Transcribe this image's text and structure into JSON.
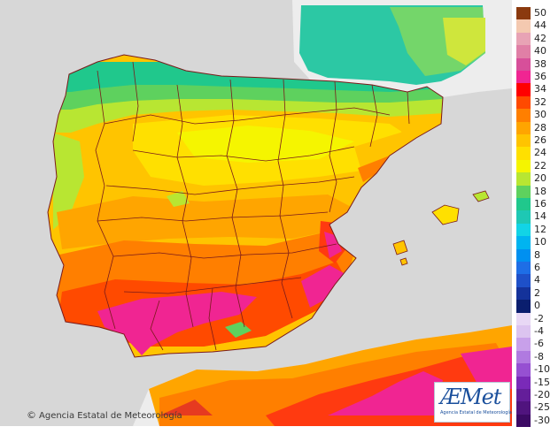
{
  "legend": {
    "entries": [
      {
        "label": "50",
        "color": "#8b3a0f"
      },
      {
        "label": "44",
        "color": "#f4c9b0"
      },
      {
        "label": "42",
        "color": "#e8a3b5"
      },
      {
        "label": "40",
        "color": "#e07fa6"
      },
      {
        "label": "38",
        "color": "#d74f9a"
      },
      {
        "label": "36",
        "color": "#f02592"
      },
      {
        "label": "34",
        "color": "#ff0000"
      },
      {
        "label": "32",
        "color": "#ff4a00"
      },
      {
        "label": "30",
        "color": "#ff7f00"
      },
      {
        "label": "28",
        "color": "#ffa500"
      },
      {
        "label": "26",
        "color": "#ffc400"
      },
      {
        "label": "24",
        "color": "#ffe000"
      },
      {
        "label": "22",
        "color": "#f5f500"
      },
      {
        "label": "20",
        "color": "#b8e632"
      },
      {
        "label": "18",
        "color": "#5ed15e"
      },
      {
        "label": "16",
        "color": "#20c88c"
      },
      {
        "label": "14",
        "color": "#1ec8b4"
      },
      {
        "label": "12",
        "color": "#12d4e6"
      },
      {
        "label": "10",
        "color": "#00b4f0"
      },
      {
        "label": "8",
        "color": "#0090f0"
      },
      {
        "label": "6",
        "color": "#1e6ee6"
      },
      {
        "label": "4",
        "color": "#1e50c8"
      },
      {
        "label": "2",
        "color": "#14329a"
      },
      {
        "label": "0",
        "color": "#0a1e6e"
      },
      {
        "label": "-2",
        "color": "#e8d8f5"
      },
      {
        "label": "-4",
        "color": "#dcc4f0"
      },
      {
        "label": "-6",
        "color": "#c8a0ea"
      },
      {
        "label": "-8",
        "color": "#b07ae0"
      },
      {
        "label": "-10",
        "color": "#9650d2"
      },
      {
        "label": "-15",
        "color": "#7a2ab8"
      },
      {
        "label": "-20",
        "color": "#641e9a"
      },
      {
        "label": "-25",
        "color": "#50147e"
      },
      {
        "label": "-30",
        "color": "#3c0a64"
      }
    ]
  },
  "copyright": {
    "icon": "copyright-icon",
    "text": "Agencia Estatal de Meteorología"
  },
  "logo": {
    "mark_a": "Æ",
    "mark_rest": "Met",
    "subtitle": "Agencia Estatal de Meteorología"
  },
  "colors": {
    "sea": "#d7d7d7",
    "foreign_land": "#ededed",
    "border_lines": "#7a1a1a"
  }
}
